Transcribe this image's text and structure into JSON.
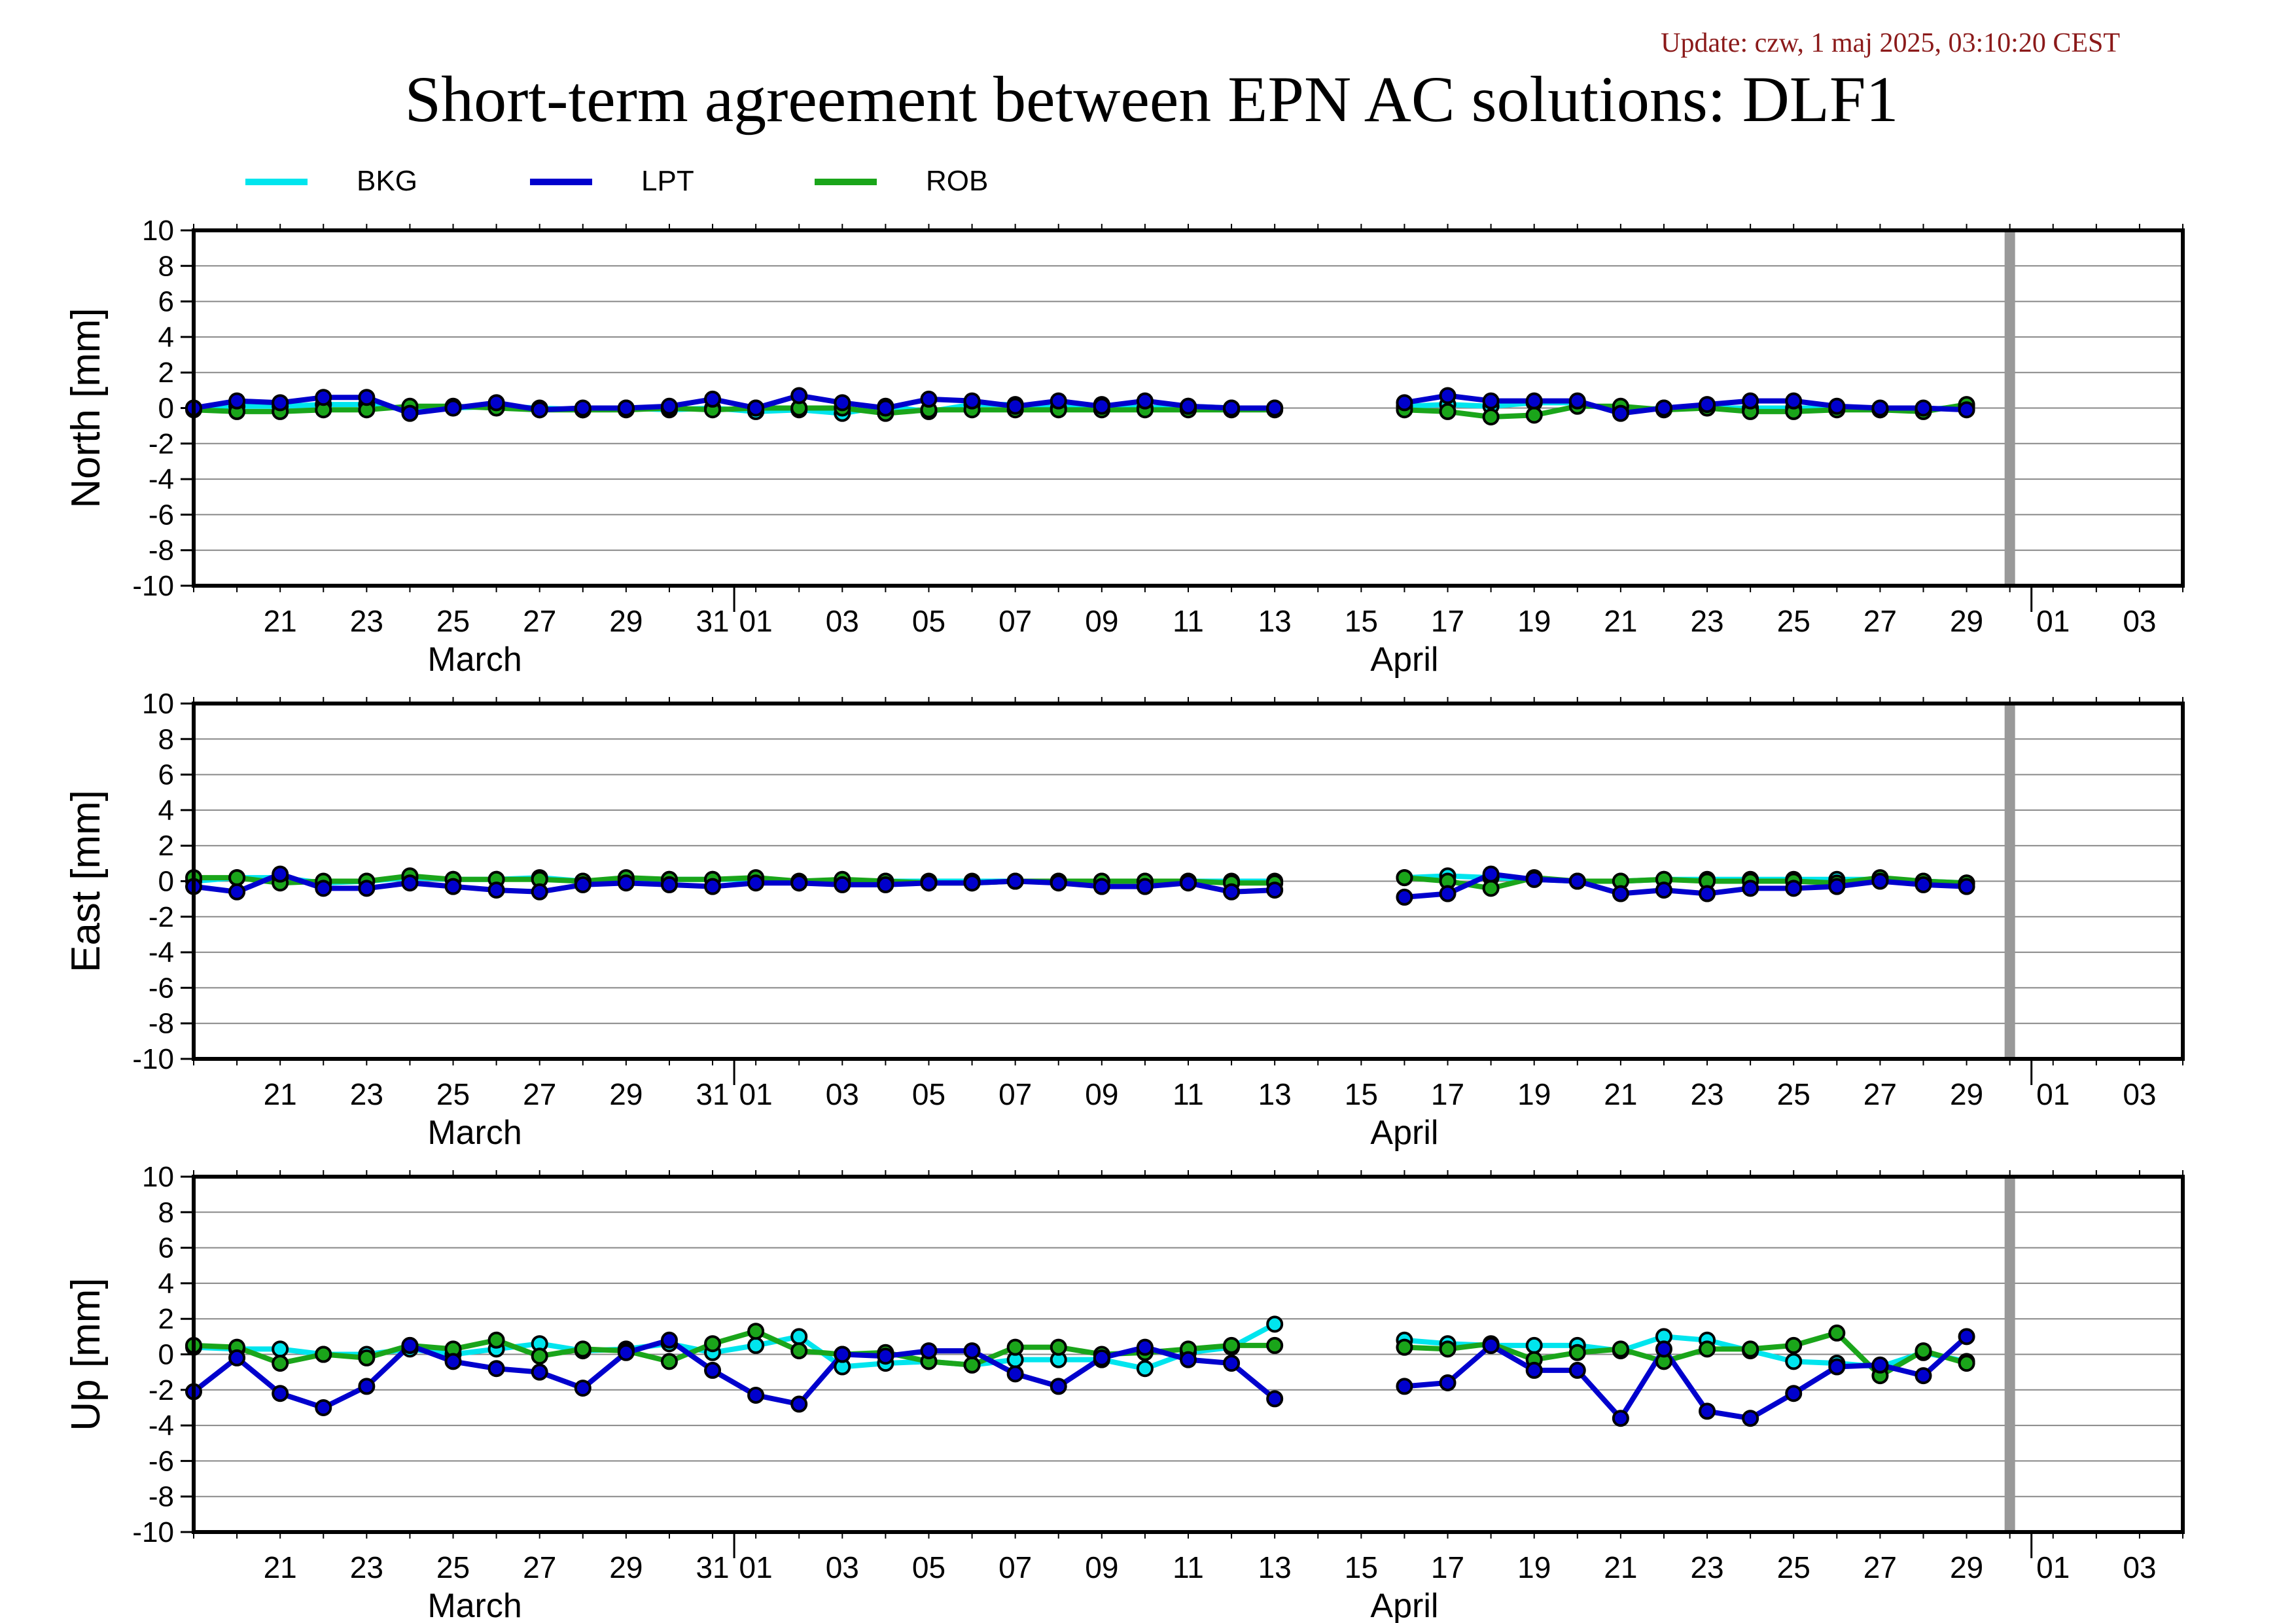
{
  "update_text": "Update: czw, 1 maj 2025, 03:10:20 CEST",
  "title": "Short-term agreement between EPN AC solutions: DLF1",
  "colors": {
    "BKG": "#00e5ee",
    "LPT": "#0000cd",
    "ROB": "#1aa51a",
    "update": "#8b1a1a",
    "marker_bar": "#999999"
  },
  "chart_data": {
    "type": "line",
    "legend": [
      "BKG",
      "LPT",
      "ROB"
    ],
    "legend_placement": "top-left",
    "x_start": "2025-03-19",
    "x_end": "2025-05-04",
    "marker_date": "2025-04-30",
    "x_ticks": [
      "21",
      "23",
      "25",
      "27",
      "29",
      "31",
      "01",
      "03",
      "05",
      "07",
      "09",
      "11",
      "13",
      "15",
      "17",
      "19",
      "21",
      "23",
      "25",
      "27",
      "29",
      "01",
      "03"
    ],
    "month_labels": [
      "March",
      "April"
    ],
    "dates": [
      "2025-03-19",
      "2025-03-20",
      "2025-03-21",
      "2025-03-22",
      "2025-03-23",
      "2025-03-24",
      "2025-03-25",
      "2025-03-26",
      "2025-03-27",
      "2025-03-28",
      "2025-03-29",
      "2025-03-30",
      "2025-03-31",
      "2025-04-01",
      "2025-04-02",
      "2025-04-03",
      "2025-04-04",
      "2025-04-05",
      "2025-04-06",
      "2025-04-07",
      "2025-04-08",
      "2025-04-09",
      "2025-04-10",
      "2025-04-11",
      "2025-04-12",
      "2025-04-13",
      "2025-04-14",
      "2025-04-15",
      "2025-04-16",
      "2025-04-17",
      "2025-04-18",
      "2025-04-19",
      "2025-04-20",
      "2025-04-21",
      "2025-04-22",
      "2025-04-23",
      "2025-04-24",
      "2025-04-25",
      "2025-04-26",
      "2025-04-27",
      "2025-04-28",
      "2025-04-29"
    ],
    "panels": [
      {
        "ylabel": "North [mm]",
        "ylim": [
          -10,
          10
        ],
        "yticks": [
          "10",
          "8",
          "6",
          "4",
          "2",
          "0",
          "-2",
          "-4",
          "-6",
          "-8",
          "-10"
        ],
        "series": [
          {
            "name": "BKG",
            "values": [
              0.0,
              0.1,
              0.1,
              0.2,
              0.2,
              -0.1,
              0.0,
              0.1,
              0.0,
              -0.1,
              0.0,
              -0.1,
              0.0,
              -0.2,
              -0.1,
              -0.3,
              0.1,
              -0.2,
              0.2,
              0.2,
              0.0,
              0.2,
              0.0,
              0.1,
              0.0,
              0.0,
              null,
              null,
              0.1,
              0.2,
              0.1,
              0.3,
              0.3,
              -0.2,
              0.0,
              0.0,
              0.0,
              0.0,
              0.0,
              -0.1,
              -0.1,
              0.1
            ]
          },
          {
            "name": "LPT",
            "values": [
              0.0,
              0.4,
              0.3,
              0.6,
              0.6,
              -0.3,
              0.0,
              0.3,
              -0.1,
              0.0,
              0.0,
              0.1,
              0.5,
              0.0,
              0.7,
              0.3,
              0.0,
              0.5,
              0.4,
              0.1,
              0.4,
              0.1,
              0.4,
              0.1,
              0.0,
              0.0,
              null,
              null,
              0.3,
              0.7,
              0.4,
              0.4,
              0.4,
              -0.3,
              0.0,
              0.2,
              0.4,
              0.4,
              0.1,
              0.0,
              0.0,
              -0.1
            ]
          },
          {
            "name": "ROB",
            "values": [
              -0.1,
              -0.2,
              -0.2,
              -0.1,
              -0.1,
              0.1,
              0.1,
              0.0,
              -0.1,
              -0.1,
              -0.1,
              0.0,
              -0.1,
              0.0,
              0.0,
              0.0,
              -0.3,
              -0.1,
              -0.1,
              -0.1,
              -0.1,
              -0.1,
              -0.1,
              -0.1,
              -0.1,
              -0.1,
              null,
              null,
              -0.1,
              -0.2,
              -0.5,
              -0.4,
              0.1,
              0.1,
              -0.1,
              0.0,
              -0.2,
              -0.2,
              -0.1,
              -0.1,
              -0.2,
              0.2
            ]
          }
        ]
      },
      {
        "ylabel": "East [mm]",
        "ylim": [
          -10,
          10
        ],
        "yticks": [
          "10",
          "8",
          "6",
          "4",
          "2",
          "0",
          "-2",
          "-4",
          "-6",
          "-8",
          "-10"
        ],
        "series": [
          {
            "name": "BKG",
            "values": [
              0.0,
              0.2,
              0.2,
              -0.1,
              0.0,
              0.2,
              0.1,
              0.1,
              0.2,
              0.0,
              0.1,
              0.1,
              0.1,
              0.1,
              -0.1,
              0.0,
              0.0,
              0.0,
              0.0,
              0.0,
              0.0,
              0.0,
              0.0,
              0.0,
              0.0,
              0.0,
              null,
              null,
              0.2,
              0.3,
              0.2,
              0.1,
              0.0,
              0.0,
              0.1,
              0.1,
              0.1,
              0.1,
              0.1,
              0.1,
              0.0,
              -0.1
            ]
          },
          {
            "name": "LPT",
            "values": [
              -0.3,
              -0.6,
              0.4,
              -0.4,
              -0.4,
              -0.1,
              -0.3,
              -0.5,
              -0.6,
              -0.2,
              -0.1,
              -0.2,
              -0.3,
              -0.1,
              -0.1,
              -0.2,
              -0.2,
              -0.1,
              -0.1,
              0.0,
              -0.1,
              -0.3,
              -0.3,
              -0.1,
              -0.6,
              -0.5,
              null,
              null,
              -0.9,
              -0.7,
              0.4,
              0.1,
              0.0,
              -0.7,
              -0.5,
              -0.7,
              -0.4,
              -0.4,
              -0.3,
              0.0,
              -0.2,
              -0.3
            ]
          },
          {
            "name": "ROB",
            "values": [
              0.2,
              0.2,
              -0.1,
              0.0,
              0.0,
              0.3,
              0.1,
              0.1,
              0.1,
              0.0,
              0.2,
              0.1,
              0.1,
              0.2,
              0.0,
              0.1,
              0.0,
              -0.1,
              -0.1,
              0.0,
              0.0,
              0.0,
              0.0,
              0.0,
              -0.1,
              -0.1,
              null,
              null,
              0.2,
              0.0,
              -0.4,
              0.2,
              0.0,
              0.0,
              0.1,
              0.0,
              0.0,
              0.0,
              -0.1,
              0.2,
              0.0,
              -0.1
            ]
          }
        ]
      },
      {
        "ylabel": "Up [mm]",
        "ylim": [
          -10,
          10
        ],
        "yticks": [
          "10",
          "8",
          "6",
          "4",
          "2",
          "0",
          "-2",
          "-4",
          "-6",
          "-8",
          "-10"
        ],
        "series": [
          {
            "name": "BKG",
            "values": [
              0.4,
              0.3,
              0.3,
              0.0,
              0.0,
              0.3,
              0.0,
              0.3,
              0.6,
              0.2,
              0.3,
              0.6,
              0.1,
              0.5,
              1.0,
              -0.7,
              -0.5,
              -0.4,
              -0.6,
              -0.3,
              -0.3,
              -0.3,
              -0.8,
              0.1,
              0.4,
              1.7,
              null,
              null,
              0.8,
              0.6,
              0.5,
              0.5,
              0.5,
              0.2,
              1.0,
              0.8,
              0.2,
              -0.4,
              -0.5,
              -0.7,
              0.1,
              -0.4
            ]
          },
          {
            "name": "LPT",
            "values": [
              -2.1,
              -0.2,
              -2.2,
              -3.0,
              -1.8,
              0.5,
              -0.4,
              -0.8,
              -1.0,
              -1.9,
              0.1,
              0.8,
              -0.9,
              -2.3,
              -2.8,
              0.0,
              -0.1,
              0.2,
              0.2,
              -1.1,
              -1.8,
              -0.2,
              0.4,
              -0.3,
              -0.5,
              -2.5,
              null,
              null,
              -1.8,
              -1.6,
              0.5,
              -0.9,
              -0.9,
              -3.6,
              0.3,
              -3.2,
              -3.6,
              -2.2,
              -0.7,
              -0.6,
              -1.2,
              1.0
            ]
          },
          {
            "name": "ROB",
            "values": [
              0.5,
              0.4,
              -0.5,
              0.0,
              -0.2,
              0.5,
              0.3,
              0.8,
              -0.1,
              0.3,
              0.2,
              -0.4,
              0.6,
              1.3,
              0.2,
              0.0,
              0.1,
              -0.4,
              -0.6,
              0.4,
              0.4,
              0.0,
              0.1,
              0.3,
              0.5,
              0.5,
              null,
              null,
              0.4,
              0.3,
              0.6,
              -0.3,
              0.1,
              0.3,
              -0.4,
              0.3,
              0.3,
              0.5,
              1.2,
              -1.2,
              0.2,
              -0.5
            ]
          }
        ]
      }
    ]
  }
}
